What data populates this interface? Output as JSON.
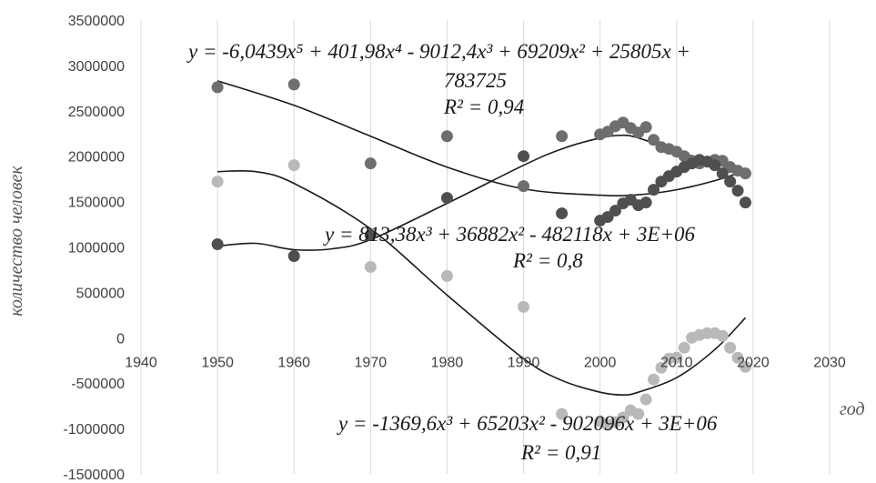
{
  "chart_data": {
    "type": "scatter",
    "title": "",
    "xlabel": "год",
    "ylabel": "количество человек",
    "xlim": [
      1940,
      2030
    ],
    "ylim": [
      -1500000,
      3500000
    ],
    "x_ticks": [
      1940,
      1950,
      1960,
      1970,
      1980,
      1990,
      2000,
      2010,
      2020,
      2030
    ],
    "x_tick_labels": [
      "1940",
      "1950",
      "1960",
      "1970",
      "1980",
      "1990",
      "2000",
      "2010",
      "2020",
      "2030"
    ],
    "y_ticks": [
      3500000,
      3000000,
      2500000,
      2000000,
      1500000,
      1000000,
      500000,
      0,
      -500000,
      -1000000,
      -1500000
    ],
    "y_tick_labels": [
      "3500000",
      "3000000",
      "2500000",
      "2000000",
      "1500000",
      "1000000",
      "500000",
      "0",
      "-500000",
      "-1000000",
      "-1500000"
    ],
    "grid": "vertical",
    "series": [
      {
        "color": "#6e6e6e",
        "x": [
          1950,
          1960,
          1970,
          1980,
          1990,
          1995,
          2000,
          2001,
          2002,
          2003,
          2004,
          2005,
          2006,
          2007,
          2008,
          2009,
          2010,
          2011,
          2012,
          2013,
          2014,
          2015,
          2016,
          2017,
          2018,
          2019
        ],
        "y": [
          2760000,
          2790000,
          1920000,
          2220000,
          1670000,
          2220000,
          2240000,
          2270000,
          2330000,
          2370000,
          2310000,
          2260000,
          2320000,
          2180000,
          2100000,
          2080000,
          2050000,
          2000000,
          1950000,
          1920000,
          1940000,
          1960000,
          1950000,
          1880000,
          1840000,
          1810000
        ]
      },
      {
        "color": "#4f4f4f",
        "x": [
          1950,
          1960,
          1970,
          1980,
          1990,
          1995,
          2000,
          2001,
          2002,
          2003,
          2004,
          2005,
          2006,
          2007,
          2008,
          2009,
          2010,
          2011,
          2012,
          2013,
          2014,
          2015,
          2016,
          2017,
          2018,
          2019
        ],
        "y": [
          1030000,
          900000,
          1130000,
          1540000,
          2000000,
          1370000,
          1290000,
          1330000,
          1400000,
          1480000,
          1520000,
          1460000,
          1490000,
          1630000,
          1720000,
          1780000,
          1830000,
          1880000,
          1920000,
          1960000,
          1940000,
          1900000,
          1810000,
          1720000,
          1620000,
          1490000
        ]
      },
      {
        "color": "#b9b9b9",
        "x": [
          1950,
          1960,
          1970,
          1980,
          1990,
          1995,
          2000,
          2001,
          2002,
          2003,
          2004,
          2005,
          2006,
          2007,
          2008,
          2009,
          2010,
          2011,
          2012,
          2013,
          2014,
          2015,
          2016,
          2017,
          2018,
          2019
        ],
        "y": [
          1720000,
          1900000,
          780000,
          680000,
          340000,
          -840000,
          -920000,
          -960000,
          -930000,
          -880000,
          -800000,
          -840000,
          -680000,
          -460000,
          -330000,
          -230000,
          -220000,
          -110000,
          0,
          30000,
          50000,
          50000,
          20000,
          -110000,
          -220000,
          -320000
        ]
      }
    ],
    "trendlines": [
      {
        "type": "polynomial",
        "order": 5,
        "equation": "y = -6,0439x⁵ + 401,98x⁴ - 9012,4x³ + 69209x² + 25805x +",
        "equation_cont": "783725",
        "r2": "R² = 0,94"
      },
      {
        "type": "polynomial",
        "order": 3,
        "equation": "y = 813,38x³ + 36882x² - 482118x + 3E+06",
        "r2": "R² = 0,8"
      },
      {
        "type": "polynomial",
        "order": 3,
        "equation": "y = -1369,6x³ + 65203x² - 902096x + 3E+06",
        "r2": "R² = 0,91"
      }
    ]
  }
}
